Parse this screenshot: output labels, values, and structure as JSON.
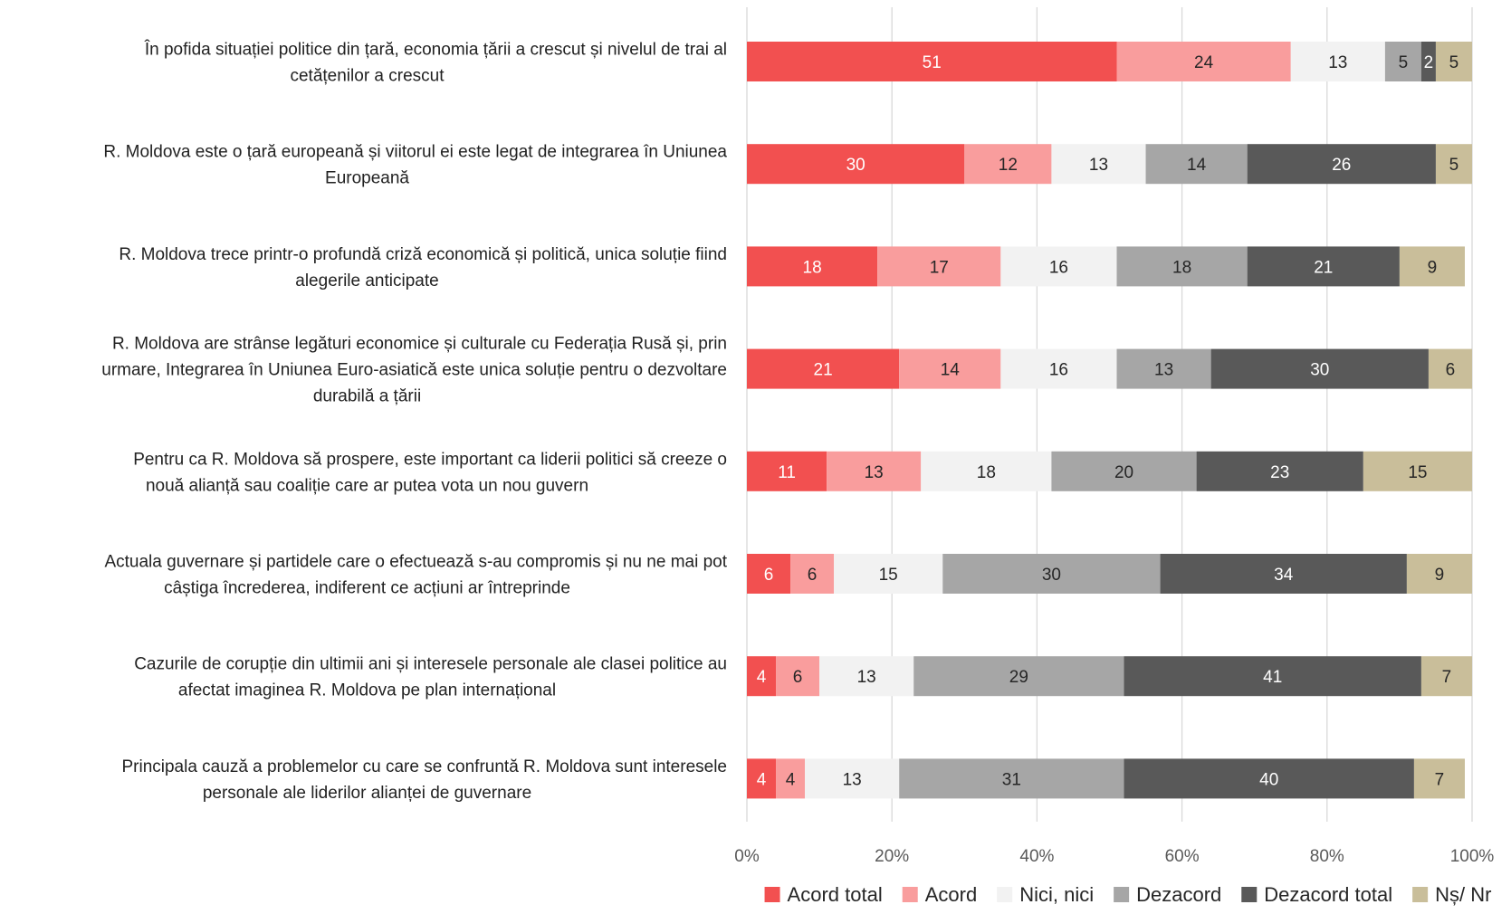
{
  "chart_data": {
    "type": "bar",
    "orientation": "horizontal",
    "stacked": true,
    "categories": [
      [
        "În pofida situației politice din țară, economia țării a crescut și nivelul de trai al",
        "cetățenilor a crescut"
      ],
      [
        "R. Moldova este o țară europeană și viitorul ei este legat de integrarea în Uniunea",
        "Europeană"
      ],
      [
        "R. Moldova trece printr-o profundă criză economică și politică, unica soluție fiind",
        "alegerile anticipate"
      ],
      [
        "R. Moldova are strânse legături economice și culturale cu Federația Rusă și, prin",
        "urmare, Integrarea în Uniunea Euro-asiatică este unica soluție pentru o dezvoltare",
        "durabilă a țării"
      ],
      [
        "Pentru ca R. Moldova să prospere, este important ca liderii politici să creeze o",
        "nouă alianță sau coaliție care ar putea vota un nou guvern"
      ],
      [
        "Actuala guvernare și partidele care o efectuează s-au compromis și nu ne mai pot",
        "câștiga încrederea, indiferent ce acțiuni ar întreprinde"
      ],
      [
        "Cazurile de corupție din ultimii ani și interesele personale ale clasei politice au",
        "afectat imaginea R. Moldova pe plan internațional"
      ],
      [
        "Principala cauză a problemelor cu care se confruntă R. Moldova sunt interesele",
        "personale ale liderilor alianței de guvernare"
      ]
    ],
    "series": [
      {
        "name": "Acord total",
        "color": "#f25050",
        "label_color": "#ffffff",
        "values": [
          51,
          30,
          18,
          21,
          11,
          6,
          4,
          4
        ]
      },
      {
        "name": "Acord",
        "color": "#f99d9d",
        "label_color": "#262626",
        "values": [
          24,
          12,
          17,
          14,
          13,
          6,
          6,
          4
        ]
      },
      {
        "name": "Nici, nici",
        "color": "#f2f2f2",
        "label_color": "#262626",
        "values": [
          13,
          13,
          16,
          16,
          18,
          15,
          13,
          13
        ]
      },
      {
        "name": "Dezacord",
        "color": "#a6a6a6",
        "label_color": "#262626",
        "values": [
          5,
          14,
          18,
          13,
          20,
          30,
          29,
          31
        ]
      },
      {
        "name": "Dezacord total",
        "color": "#595959",
        "label_color": "#ffffff",
        "values": [
          2,
          26,
          21,
          30,
          23,
          34,
          41,
          40
        ]
      },
      {
        "name": "Nș/ Nr",
        "color": "#c9be9a",
        "label_color": "#262626",
        "values": [
          5,
          5,
          9,
          6,
          15,
          9,
          7,
          7
        ]
      }
    ],
    "x_ticks": [
      "0%",
      "20%",
      "40%",
      "60%",
      "80%",
      "100%"
    ],
    "xlim": [
      0,
      100
    ],
    "grid": true,
    "legend_position": "bottom",
    "title": "",
    "xlabel": "",
    "ylabel": ""
  }
}
